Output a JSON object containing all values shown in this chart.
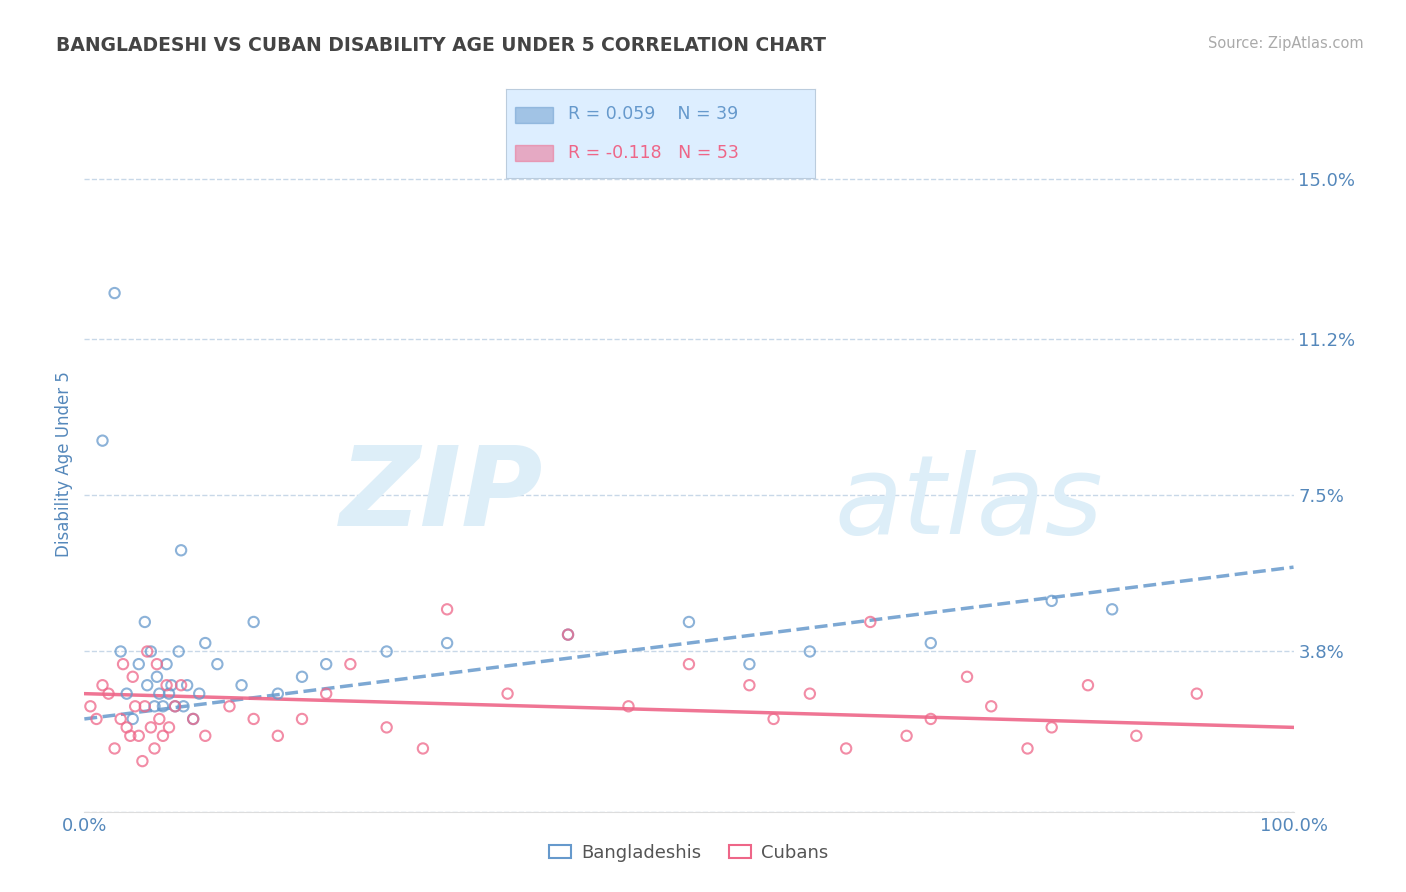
{
  "title": "BANGLADESHI VS CUBAN DISABILITY AGE UNDER 5 CORRELATION CHART",
  "source": "Source: ZipAtlas.com",
  "ylabel": "Disability Age Under 5",
  "xlim": [
    0,
    100
  ],
  "ylim": [
    0,
    16.5
  ],
  "yticks": [
    0.0,
    3.8,
    7.5,
    11.2,
    15.0
  ],
  "ytick_labels": [
    "",
    "3.8%",
    "7.5%",
    "11.2%",
    "15.0%"
  ],
  "xticks": [
    0,
    25,
    50,
    75,
    100
  ],
  "xtick_labels": [
    "0.0%",
    "",
    "",
    "",
    "100.0%"
  ],
  "bangladeshi_R": 0.059,
  "bangladeshi_N": 39,
  "cuban_R": -0.118,
  "cuban_N": 53,
  "bg_color": "#ffffff",
  "grid_color": "#c8d8e8",
  "blue_color": "#6699cc",
  "pink_color": "#ee6688",
  "legend_box_color": "#ddeeff",
  "title_color": "#444444",
  "axis_label_color": "#5588bb",
  "tick_color": "#5588bb",
  "watermark_color": "#ddeef8",
  "bangladeshi_x": [
    1.5,
    2.5,
    3.0,
    3.5,
    4.0,
    4.5,
    5.0,
    5.2,
    5.5,
    5.8,
    6.0,
    6.2,
    6.5,
    6.8,
    7.0,
    7.2,
    7.5,
    7.8,
    8.0,
    8.2,
    8.5,
    9.0,
    9.5,
    10.0,
    11.0,
    13.0,
    14.0,
    16.0,
    18.0,
    20.0,
    25.0,
    30.0,
    40.0,
    50.0,
    55.0,
    60.0,
    70.0,
    80.0,
    85.0
  ],
  "bangladeshi_y": [
    8.8,
    12.3,
    3.8,
    2.8,
    2.2,
    3.5,
    4.5,
    3.0,
    3.8,
    2.5,
    3.2,
    2.8,
    2.5,
    3.5,
    2.8,
    3.0,
    2.5,
    3.8,
    6.2,
    2.5,
    3.0,
    2.2,
    2.8,
    4.0,
    3.5,
    3.0,
    4.5,
    2.8,
    3.2,
    3.5,
    3.8,
    4.0,
    4.2,
    4.5,
    3.5,
    3.8,
    4.0,
    5.0,
    4.8
  ],
  "cuban_x": [
    0.5,
    1.0,
    1.5,
    2.0,
    2.5,
    3.0,
    3.2,
    3.5,
    3.8,
    4.0,
    4.2,
    4.5,
    4.8,
    5.0,
    5.2,
    5.5,
    5.8,
    6.0,
    6.2,
    6.5,
    6.8,
    7.0,
    7.5,
    8.0,
    9.0,
    10.0,
    12.0,
    14.0,
    16.0,
    18.0,
    20.0,
    22.0,
    25.0,
    28.0,
    30.0,
    35.0,
    40.0,
    45.0,
    50.0,
    55.0,
    57.0,
    60.0,
    63.0,
    65.0,
    68.0,
    70.0,
    73.0,
    75.0,
    78.0,
    80.0,
    83.0,
    87.0,
    92.0
  ],
  "cuban_y": [
    2.5,
    2.2,
    3.0,
    2.8,
    1.5,
    2.2,
    3.5,
    2.0,
    1.8,
    3.2,
    2.5,
    1.8,
    1.2,
    2.5,
    3.8,
    2.0,
    1.5,
    3.5,
    2.2,
    1.8,
    3.0,
    2.0,
    2.5,
    3.0,
    2.2,
    1.8,
    2.5,
    2.2,
    1.8,
    2.2,
    2.8,
    3.5,
    2.0,
    1.5,
    4.8,
    2.8,
    4.2,
    2.5,
    3.5,
    3.0,
    2.2,
    2.8,
    1.5,
    4.5,
    1.8,
    2.2,
    3.2,
    2.5,
    1.5,
    2.0,
    3.0,
    1.8,
    2.8
  ],
  "blue_reg_x0": 0,
  "blue_reg_y0": 2.2,
  "blue_reg_x1": 100,
  "blue_reg_y1": 5.8,
  "pink_reg_x0": 0,
  "pink_reg_y0": 2.8,
  "pink_reg_x1": 100,
  "pink_reg_y1": 2.0
}
